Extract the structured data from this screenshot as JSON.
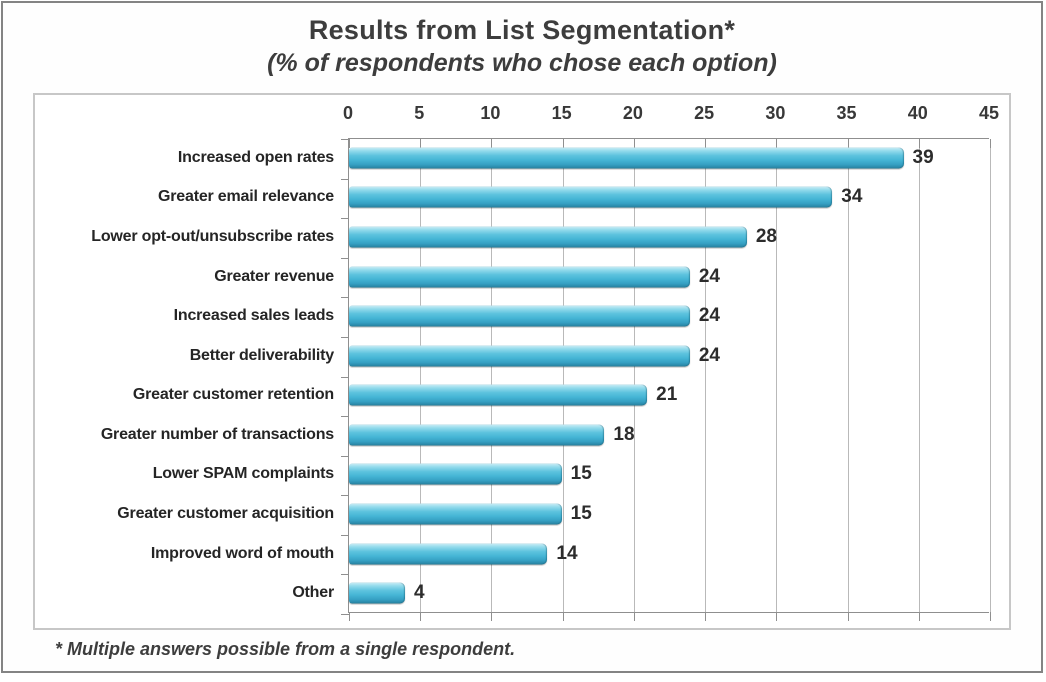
{
  "chart_data": {
    "type": "bar",
    "orientation": "horizontal",
    "title": "Results from List Segmentation*",
    "subtitle": "(% of respondents who chose each option)",
    "footnote": "* Multiple answers possible from a single respondent.",
    "categories": [
      "Increased open rates",
      "Greater email relevance",
      "Lower opt-out/unsubscribe rates",
      "Greater revenue",
      "Increased sales leads",
      "Better deliverability",
      "Greater customer retention",
      "Greater number of transactions",
      "Lower SPAM complaints",
      "Greater customer acquisition",
      "Improved word of mouth",
      "Other"
    ],
    "values": [
      39,
      34,
      28,
      24,
      24,
      24,
      21,
      18,
      15,
      15,
      14,
      4
    ],
    "xlabel": "",
    "ylabel": "",
    "xlim": [
      0,
      45
    ],
    "x_ticks": [
      0,
      5,
      10,
      15,
      20,
      25,
      30,
      35,
      40,
      45
    ],
    "grid": true,
    "legend": "none",
    "bar_color": "#45b5d5",
    "bar_highlight_color": "#96dcec",
    "bar_shadow_color": "#27809e",
    "text_color": "#3d3d3d",
    "gridline_color": "#b9b9b9",
    "axis_color": "#8f8f8f",
    "panel_border_color": "#c7c7c7",
    "frame_border_color": "#848484"
  }
}
